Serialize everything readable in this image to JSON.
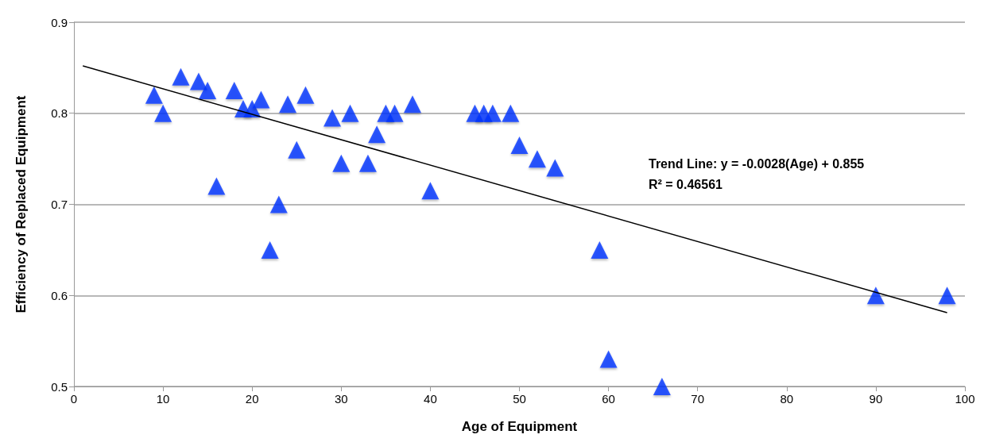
{
  "chart_data": {
    "type": "scatter",
    "xlabel": "Age of Equipment",
    "ylabel": "Efficiency of Replaced Equipment",
    "xlim": [
      0,
      100
    ],
    "xticks": [
      0,
      10,
      20,
      30,
      40,
      50,
      60,
      70,
      80,
      90,
      100
    ],
    "ylim": [
      0.5,
      0.9
    ],
    "yticks": [
      0.5,
      0.6,
      0.7,
      0.8,
      0.9
    ],
    "grid": "y",
    "marker": "triangle",
    "annotations": [
      "Trend Line: y = -0.0028(Age) + 0.855",
      "R² = 0.46561"
    ],
    "series": [
      {
        "color": "#0433ff",
        "x": [
          9,
          10,
          12,
          14,
          15,
          16,
          18,
          19,
          20,
          21,
          22,
          23,
          24,
          25,
          26,
          29,
          30,
          31,
          33,
          34,
          35,
          36,
          38,
          40,
          45,
          46,
          47,
          49,
          50,
          52,
          54,
          59,
          60,
          66,
          90,
          98
        ],
        "values": [
          0.82,
          0.8,
          0.84,
          0.835,
          0.825,
          0.72,
          0.825,
          0.805,
          0.805,
          0.815,
          0.65,
          0.7,
          0.81,
          0.76,
          0.82,
          0.795,
          0.745,
          0.8,
          0.745,
          0.777,
          0.8,
          0.8,
          0.81,
          0.715,
          0.8,
          0.8,
          0.8,
          0.8,
          0.765,
          0.75,
          0.74,
          0.65,
          0.53,
          0.5,
          0.6,
          0.6
        ]
      },
      {
        "type": "line",
        "color": "#000000",
        "x": [
          1,
          98
        ],
        "values": [
          0.852,
          0.581
        ],
        "marker": "none"
      }
    ]
  }
}
